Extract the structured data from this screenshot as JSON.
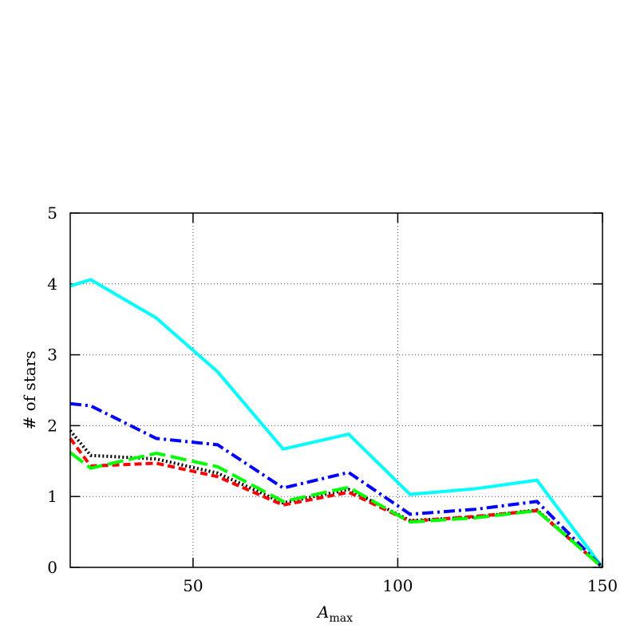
{
  "chart_data": {
    "type": "line",
    "xlabel": "A",
    "xlabel_sub": "max",
    "ylabel": "# of stars",
    "x": [
      20,
      25,
      41,
      56,
      72,
      88,
      103,
      119,
      134,
      150
    ],
    "series": [
      {
        "color": "#00ffff",
        "dash": "solid",
        "values": [
          3.97,
          4.06,
          3.52,
          2.76,
          1.67,
          1.88,
          1.03,
          1.11,
          1.23,
          0
        ]
      },
      {
        "color": "#0000ff",
        "dash": "dashdot",
        "values": [
          2.31,
          2.28,
          1.82,
          1.73,
          1.12,
          1.34,
          0.75,
          0.82,
          0.93,
          0
        ]
      },
      {
        "color": "#000000",
        "dash": "dotted",
        "values": [
          1.93,
          1.58,
          1.53,
          1.33,
          0.91,
          1.1,
          0.66,
          0.71,
          0.81,
          0
        ]
      },
      {
        "color": "#ff0000",
        "dash": "dashed",
        "values": [
          1.82,
          1.43,
          1.47,
          1.28,
          0.88,
          1.06,
          0.65,
          0.72,
          0.8,
          0
        ]
      },
      {
        "color": "#00ff00",
        "dash": "longdash",
        "values": [
          1.62,
          1.4,
          1.61,
          1.42,
          0.93,
          1.13,
          0.64,
          0.7,
          0.8,
          0
        ]
      }
    ],
    "xlim": [
      20,
      150
    ],
    "ylim": [
      0,
      5
    ],
    "xticks": [
      50,
      100,
      150
    ],
    "yticks": [
      0,
      1,
      2,
      3,
      4,
      5
    ],
    "grid": true
  }
}
